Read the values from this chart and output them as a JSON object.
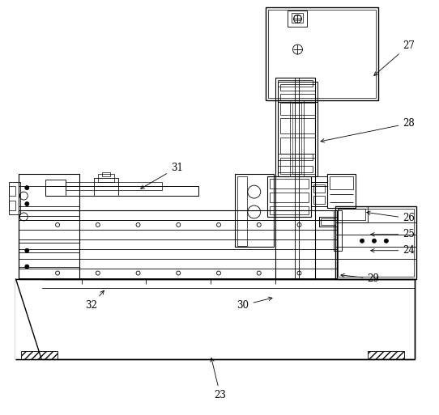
{
  "fig_width": 5.42,
  "fig_height": 5.13,
  "dpi": 100,
  "bg_color": "#ffffff",
  "line_color": "#000000",
  "lw": 0.6
}
